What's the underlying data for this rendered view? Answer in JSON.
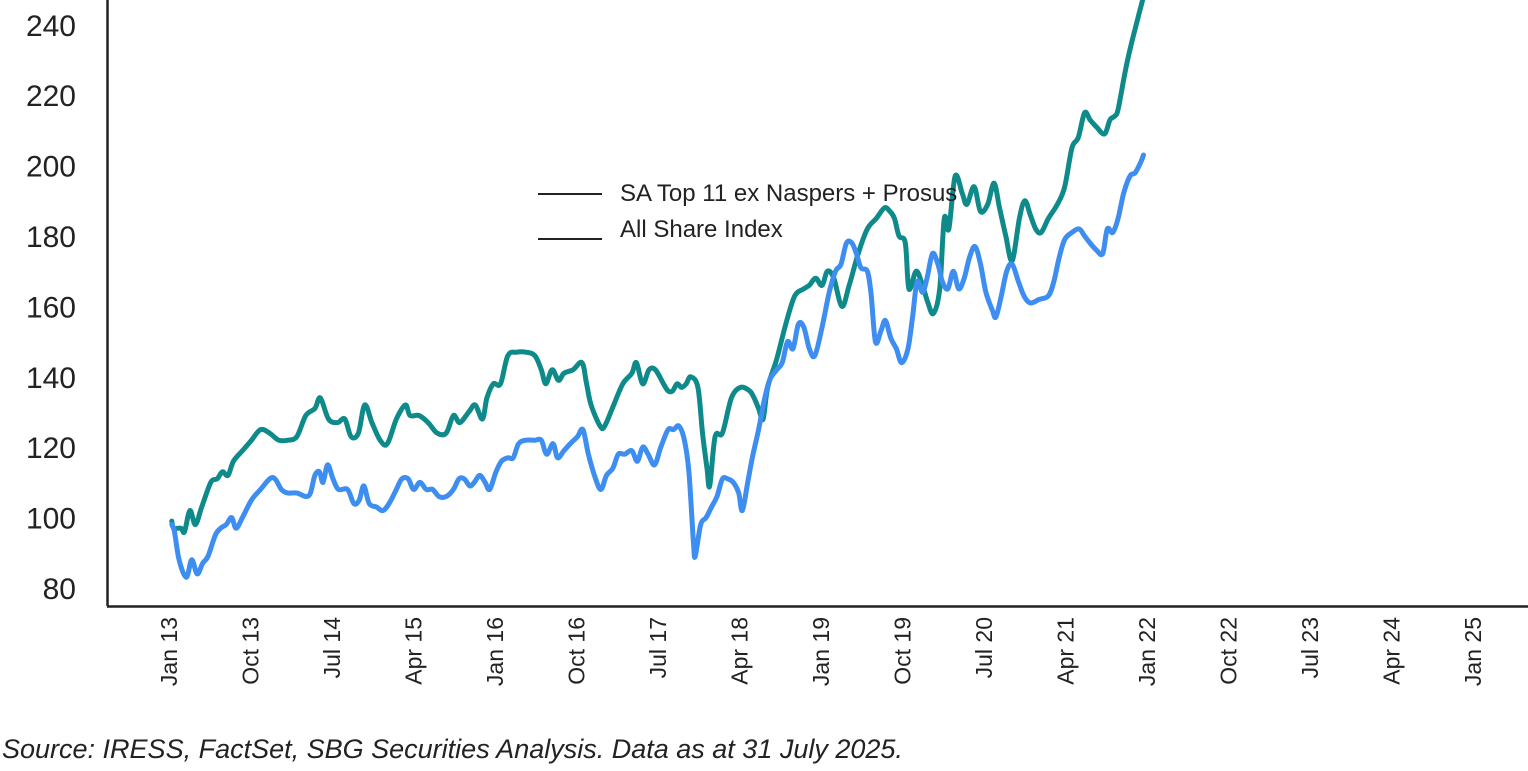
{
  "chart_data": {
    "type": "line",
    "title": "",
    "xlabel": "",
    "ylabel": "",
    "ylim": [
      80,
      245
    ],
    "yticks": [
      "80",
      "100",
      "120",
      "140",
      "160",
      "180",
      "200",
      "220",
      "240"
    ],
    "xticks": [
      "Jan 13",
      "Oct 13",
      "Jul 14",
      "Apr 15",
      "Jan 16",
      "Oct 16",
      "Jul 17",
      "Apr 18",
      "Jan 19",
      "Oct 19",
      "Jul 20",
      "Apr 21",
      "Jan 22",
      "Oct 22",
      "Jul 23",
      "Apr 24",
      "Jan 25"
    ],
    "legend_position": "top-center",
    "grid": false,
    "series": [
      {
        "name": "SA Top 11 ex Naspers + Prosus",
        "color": "#0f8a8a",
        "points": [
          [
            0.2,
            99
          ],
          [
            0.4,
            97
          ],
          [
            1.2,
            97
          ],
          [
            1.6,
            96
          ],
          [
            2.2,
            102
          ],
          [
            2.8,
            98
          ],
          [
            3.5,
            103
          ],
          [
            4.5,
            110
          ],
          [
            5.2,
            111
          ],
          [
            5.8,
            113
          ],
          [
            6.4,
            112
          ],
          [
            7.0,
            116
          ],
          [
            8.0,
            119
          ],
          [
            9.0,
            122
          ],
          [
            10.0,
            125
          ],
          [
            11.0,
            124
          ],
          [
            12.0,
            122
          ],
          [
            13.0,
            122
          ],
          [
            14.0,
            123
          ],
          [
            15.0,
            129
          ],
          [
            16.0,
            131
          ],
          [
            16.6,
            134
          ],
          [
            17.5,
            128
          ],
          [
            18.5,
            127
          ],
          [
            19.3,
            128
          ],
          [
            20.0,
            123
          ],
          [
            20.8,
            124
          ],
          [
            21.5,
            132
          ],
          [
            22.3,
            127
          ],
          [
            23.2,
            122
          ],
          [
            24.0,
            121
          ],
          [
            25.0,
            128
          ],
          [
            26.0,
            132
          ],
          [
            26.5,
            129
          ],
          [
            27.5,
            129
          ],
          [
            28.5,
            127
          ],
          [
            29.5,
            124
          ],
          [
            30.5,
            124
          ],
          [
            31.3,
            129
          ],
          [
            32.0,
            127
          ],
          [
            33.0,
            130
          ],
          [
            33.7,
            132
          ],
          [
            34.5,
            128
          ],
          [
            35.0,
            134
          ],
          [
            35.7,
            138
          ],
          [
            36.5,
            138
          ],
          [
            37.3,
            146
          ],
          [
            38.3,
            147
          ],
          [
            39.3,
            147
          ],
          [
            40.3,
            146
          ],
          [
            41.0,
            142
          ],
          [
            41.5,
            138
          ],
          [
            42.2,
            142
          ],
          [
            42.9,
            139
          ],
          [
            43.5,
            141
          ],
          [
            44.5,
            142
          ],
          [
            45.5,
            144
          ],
          [
            46.0,
            138
          ],
          [
            46.5,
            132
          ],
          [
            47.5,
            126
          ],
          [
            48.0,
            126
          ],
          [
            49.0,
            132
          ],
          [
            50.0,
            138
          ],
          [
            51.0,
            141
          ],
          [
            51.5,
            144
          ],
          [
            52.2,
            138
          ],
          [
            52.9,
            142
          ],
          [
            53.6,
            142
          ],
          [
            54.5,
            138
          ],
          [
            55.0,
            136
          ],
          [
            55.5,
            136
          ],
          [
            56.0,
            138
          ],
          [
            56.5,
            137
          ],
          [
            57.0,
            138
          ],
          [
            57.5,
            140
          ],
          [
            58.3,
            137
          ],
          [
            58.8,
            124
          ],
          [
            59.3,
            114
          ],
          [
            59.6,
            109
          ],
          [
            60.2,
            123
          ],
          [
            61.0,
            124
          ],
          [
            62.0,
            134
          ],
          [
            63.0,
            137
          ],
          [
            64.0,
            136
          ],
          [
            64.5,
            134
          ],
          [
            65.0,
            131
          ],
          [
            65.5,
            128
          ],
          [
            66.0,
            137
          ],
          [
            67.0,
            145
          ],
          [
            68.0,
            155
          ],
          [
            69.0,
            163
          ],
          [
            70.0,
            165
          ],
          [
            70.6,
            166
          ],
          [
            71.3,
            168
          ],
          [
            72.0,
            166
          ],
          [
            72.6,
            170
          ],
          [
            73.3,
            168
          ],
          [
            74.2,
            160
          ],
          [
            75.0,
            166
          ],
          [
            76.0,
            175
          ],
          [
            77.0,
            182
          ],
          [
            78.0,
            185
          ],
          [
            78.9,
            188
          ],
          [
            79.5,
            187
          ],
          [
            80.0,
            185
          ],
          [
            80.5,
            180
          ],
          [
            81.2,
            178
          ],
          [
            81.6,
            165
          ],
          [
            82.4,
            170
          ],
          [
            83.1,
            166
          ],
          [
            83.7,
            161
          ],
          [
            84.3,
            158
          ],
          [
            85.0,
            165
          ],
          [
            85.5,
            185
          ],
          [
            86.0,
            182
          ],
          [
            86.7,
            197
          ],
          [
            87.5,
            192
          ],
          [
            88.0,
            189
          ],
          [
            88.8,
            194
          ],
          [
            89.5,
            187
          ],
          [
            90.3,
            189
          ],
          [
            91.0,
            195
          ],
          [
            91.6,
            188
          ],
          [
            92.3,
            180
          ],
          [
            93.0,
            173
          ],
          [
            93.8,
            185
          ],
          [
            94.4,
            190
          ],
          [
            95.0,
            186
          ],
          [
            95.6,
            182
          ],
          [
            96.2,
            181
          ],
          [
            97.0,
            185
          ],
          [
            98.0,
            189
          ],
          [
            98.8,
            194
          ],
          [
            99.6,
            205
          ],
          [
            100.3,
            208
          ],
          [
            101.0,
            215
          ],
          [
            101.6,
            213
          ],
          [
            102.3,
            211
          ],
          [
            103.2,
            209
          ],
          [
            103.8,
            213
          ],
          [
            104.3,
            214
          ],
          [
            104.7,
            216
          ],
          [
            105.5,
            227
          ],
          [
            106.2,
            235
          ],
          [
            107.0,
            243
          ],
          [
            107.5,
            248
          ]
        ]
      },
      {
        "name": "All Share Index",
        "color": "#3d8ef0",
        "points": [
          [
            0.2,
            98
          ],
          [
            0.5,
            96
          ],
          [
            1.0,
            88
          ],
          [
            1.8,
            83
          ],
          [
            2.4,
            88
          ],
          [
            3.0,
            84
          ],
          [
            3.6,
            87
          ],
          [
            4.2,
            89
          ],
          [
            5.0,
            95
          ],
          [
            5.6,
            97
          ],
          [
            6.2,
            98
          ],
          [
            6.8,
            100
          ],
          [
            7.3,
            97
          ],
          [
            8.0,
            100
          ],
          [
            9.0,
            105
          ],
          [
            10.0,
            108
          ],
          [
            11.0,
            111
          ],
          [
            11.6,
            111
          ],
          [
            12.3,
            108
          ],
          [
            13.0,
            107
          ],
          [
            14.0,
            107
          ],
          [
            15.0,
            106
          ],
          [
            15.5,
            107
          ],
          [
            16.0,
            112
          ],
          [
            16.5,
            113
          ],
          [
            16.9,
            110
          ],
          [
            17.4,
            115
          ],
          [
            18.0,
            111
          ],
          [
            18.6,
            108
          ],
          [
            19.6,
            108
          ],
          [
            20.3,
            104
          ],
          [
            20.9,
            105
          ],
          [
            21.4,
            109
          ],
          [
            22.0,
            104
          ],
          [
            22.8,
            103
          ],
          [
            23.5,
            102
          ],
          [
            24.2,
            104
          ],
          [
            25.0,
            108
          ],
          [
            25.6,
            111
          ],
          [
            26.3,
            111
          ],
          [
            26.9,
            108
          ],
          [
            27.6,
            110
          ],
          [
            28.3,
            108
          ],
          [
            29.0,
            108
          ],
          [
            29.7,
            106
          ],
          [
            30.5,
            106
          ],
          [
            31.3,
            108
          ],
          [
            31.9,
            111
          ],
          [
            32.5,
            111
          ],
          [
            33.1,
            109
          ],
          [
            33.6,
            110
          ],
          [
            34.2,
            112
          ],
          [
            34.8,
            110
          ],
          [
            35.3,
            108
          ],
          [
            36.0,
            113
          ],
          [
            36.6,
            116
          ],
          [
            37.3,
            117
          ],
          [
            37.9,
            117
          ],
          [
            38.5,
            121
          ],
          [
            39.3,
            122
          ],
          [
            40.3,
            122
          ],
          [
            41.0,
            122
          ],
          [
            41.6,
            118
          ],
          [
            42.3,
            121
          ],
          [
            42.8,
            117
          ],
          [
            43.5,
            119
          ],
          [
            44.2,
            121
          ],
          [
            45.0,
            123
          ],
          [
            45.6,
            125
          ],
          [
            46.2,
            118
          ],
          [
            47.0,
            111
          ],
          [
            47.6,
            108
          ],
          [
            48.2,
            112
          ],
          [
            48.9,
            114
          ],
          [
            49.5,
            118
          ],
          [
            50.2,
            118
          ],
          [
            51.0,
            119
          ],
          [
            51.6,
            116
          ],
          [
            52.2,
            120
          ],
          [
            52.8,
            118
          ],
          [
            53.5,
            115
          ],
          [
            54.2,
            120
          ],
          [
            55.0,
            125
          ],
          [
            55.6,
            125
          ],
          [
            56.2,
            126
          ],
          [
            56.8,
            122
          ],
          [
            57.3,
            113
          ],
          [
            57.8,
            93
          ],
          [
            58.0,
            89
          ],
          [
            58.6,
            98
          ],
          [
            59.2,
            100
          ],
          [
            59.8,
            103
          ],
          [
            60.4,
            106
          ],
          [
            61.0,
            111
          ],
          [
            61.6,
            111
          ],
          [
            62.2,
            110
          ],
          [
            62.8,
            107
          ],
          [
            63.2,
            102
          ],
          [
            63.8,
            110
          ],
          [
            64.3,
            117
          ],
          [
            65.0,
            125
          ],
          [
            65.6,
            133
          ],
          [
            66.2,
            139
          ],
          [
            67.0,
            142
          ],
          [
            67.6,
            144
          ],
          [
            68.2,
            150
          ],
          [
            68.8,
            148
          ],
          [
            69.4,
            155
          ],
          [
            70.0,
            154
          ],
          [
            70.6,
            148
          ],
          [
            71.2,
            146
          ],
          [
            72.0,
            154
          ],
          [
            72.8,
            164
          ],
          [
            73.5,
            170
          ],
          [
            74.1,
            172
          ],
          [
            74.7,
            178
          ],
          [
            75.3,
            178
          ],
          [
            75.8,
            175
          ],
          [
            76.3,
            171
          ],
          [
            77.0,
            170
          ],
          [
            77.4,
            164
          ],
          [
            77.9,
            150
          ],
          [
            78.5,
            153
          ],
          [
            79.0,
            156
          ],
          [
            79.6,
            151
          ],
          [
            80.2,
            148
          ],
          [
            80.8,
            144
          ],
          [
            81.5,
            148
          ],
          [
            82.0,
            157
          ],
          [
            82.5,
            167
          ],
          [
            83.1,
            164
          ],
          [
            83.6,
            168
          ],
          [
            84.2,
            175
          ],
          [
            84.8,
            172
          ],
          [
            85.3,
            167
          ],
          [
            85.9,
            165
          ],
          [
            86.5,
            170
          ],
          [
            87.1,
            165
          ],
          [
            87.7,
            168
          ],
          [
            88.3,
            174
          ],
          [
            88.9,
            177
          ],
          [
            89.5,
            172
          ],
          [
            90.1,
            164
          ],
          [
            90.8,
            159
          ],
          [
            91.2,
            157
          ],
          [
            91.8,
            163
          ],
          [
            92.4,
            170
          ],
          [
            93.0,
            172
          ],
          [
            93.7,
            167
          ],
          [
            94.3,
            163
          ],
          [
            95.0,
            161
          ],
          [
            96.0,
            162
          ],
          [
            97.0,
            163
          ],
          [
            97.6,
            167
          ],
          [
            98.2,
            174
          ],
          [
            98.8,
            179
          ],
          [
            99.6,
            181
          ],
          [
            100.4,
            182
          ],
          [
            101.0,
            180
          ],
          [
            101.6,
            178
          ],
          [
            102.3,
            176
          ],
          [
            103.0,
            175
          ],
          [
            103.5,
            182
          ],
          [
            104.1,
            181
          ],
          [
            104.7,
            185
          ],
          [
            105.3,
            192
          ],
          [
            106.0,
            197
          ],
          [
            106.6,
            198
          ],
          [
            107.2,
            201
          ],
          [
            107.5,
            203
          ]
        ]
      }
    ]
  },
  "source_text": "Source:  IRESS, FactSet, SBG Securities Analysis. Data as at 31 July 2025."
}
